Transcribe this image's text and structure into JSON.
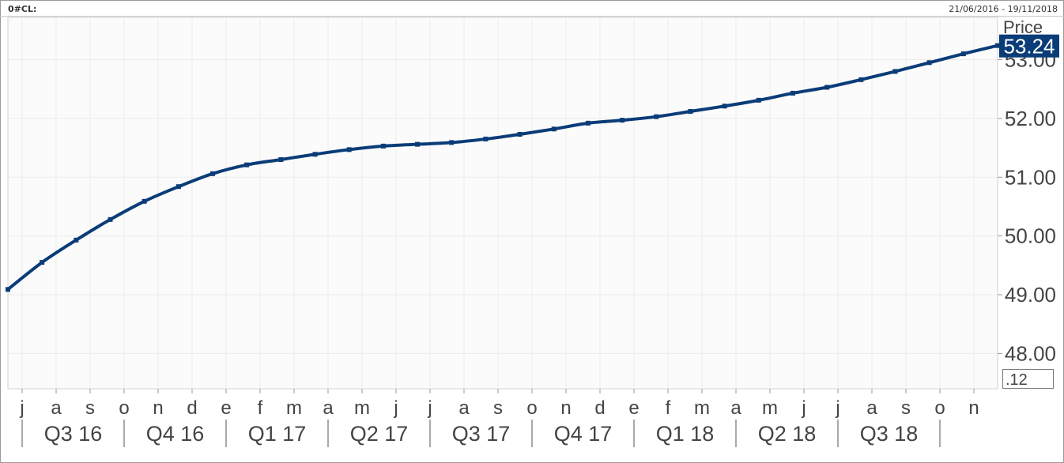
{
  "header": {
    "ric": "0#CL:",
    "date_range": "21/06/2016 - 19/11/2018"
  },
  "colors": {
    "line": "#0a3c78",
    "last_price_bg": "#0a3c78",
    "last_price_text": "#ffffff",
    "grid": "#ececec",
    "plot_bg": "#fbfbfb",
    "axis_text": "#444444"
  },
  "chart_data": {
    "type": "line",
    "title": "",
    "ylabel": "Price",
    "ylim": [
      47.4,
      53.72
    ],
    "yticks": [
      "48.00",
      "49.00",
      "50.00",
      "51.00",
      "52.00",
      "53.00"
    ],
    "y_scale_label": ".12",
    "last_price": "53.24",
    "grid": true,
    "months": [
      "j",
      "a",
      "s",
      "o",
      "n",
      "d",
      "e",
      "f",
      "m",
      "a",
      "m",
      "j",
      "j",
      "a",
      "s",
      "o",
      "n",
      "d",
      "e",
      "f",
      "m",
      "a",
      "m",
      "j",
      "j",
      "a",
      "s",
      "o",
      "n"
    ],
    "quarters": [
      "Q3 16",
      "Q4 16",
      "Q1 17",
      "Q2 17",
      "Q3 17",
      "Q4 17",
      "Q1 18",
      "Q2 18",
      "Q3 18"
    ],
    "series": [
      {
        "x": [
          "2016-06-21",
          "2016-07-21",
          "2016-08-21",
          "2016-09-21",
          "2016-10-21",
          "2016-11-21",
          "2016-12-21",
          "2017-01-21",
          "2017-02-21",
          "2017-03-21",
          "2017-04-21",
          "2017-05-21",
          "2017-06-21",
          "2017-07-21",
          "2017-08-21",
          "2017-09-21",
          "2017-10-21",
          "2017-11-21",
          "2017-12-21",
          "2018-01-21",
          "2018-02-21",
          "2018-03-21",
          "2018-04-21",
          "2018-05-21",
          "2018-06-21",
          "2018-07-21",
          "2018-08-21",
          "2018-09-21",
          "2018-10-21",
          "2018-11-19"
        ],
        "values": [
          49.09,
          49.55,
          49.93,
          50.28,
          50.59,
          50.84,
          51.06,
          51.21,
          51.3,
          51.39,
          51.47,
          51.53,
          51.56,
          51.59,
          51.65,
          51.73,
          51.82,
          51.92,
          51.97,
          52.03,
          52.12,
          52.21,
          52.31,
          52.43,
          52.53,
          52.66,
          52.8,
          52.95,
          53.1,
          53.24
        ]
      }
    ]
  }
}
